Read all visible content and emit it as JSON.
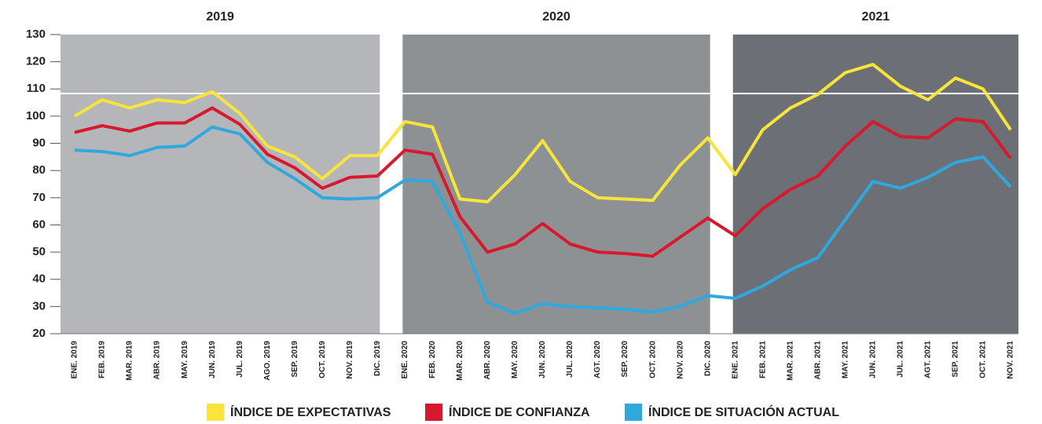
{
  "chart_data": {
    "type": "line",
    "categories": [
      "ENE. 2019",
      "FEB. 2019",
      "MAR. 2019",
      "ABR. 2019",
      "MAY. 2019",
      "JUN. 2019",
      "JUL. 2019",
      "AGO. 2019",
      "SEP. 2019",
      "OCT. 2019",
      "NOV. 2019",
      "DIC. 2019",
      "ENE. 2020",
      "FEB. 2020",
      "MAR. 2020",
      "ABR. 2020",
      "MAY. 2020",
      "JUN. 2020",
      "JUL. 2020",
      "AGT. 2020",
      "SEP. 2020",
      "OCT. 2020",
      "NOV. 2020",
      "DIC. 2020",
      "ENE. 2021",
      "FEB. 2021",
      "MAR. 2021",
      "ABR. 2021",
      "MAY. 2021",
      "JUN. 2021",
      "JUL. 2021",
      "AGT. 2021",
      "SEP. 2021",
      "OCT. 2021",
      "NOV. 2021"
    ],
    "periods": [
      {
        "label": "2019",
        "color": "#b4b6b9"
      },
      {
        "label": "2020",
        "color": "#8e9194"
      },
      {
        "label": "2021",
        "color": "#6c6f75"
      }
    ],
    "series": [
      {
        "name": "ÍNDICE DE EXPECTATIVAS",
        "color": "#f9e43a",
        "values": [
          100,
          106,
          103,
          106,
          105,
          109,
          101,
          89,
          85,
          77,
          85.5,
          85.5,
          98,
          96,
          69.5,
          68.5,
          78.5,
          91,
          76,
          70,
          69.5,
          69,
          82,
          92,
          78.5,
          95,
          103,
          108,
          116,
          119,
          111,
          106,
          114,
          110,
          95
        ]
      },
      {
        "name": "ÍNDICE DE CONFIANZA",
        "color": "#d7192d",
        "values": [
          94,
          96.5,
          94.5,
          97.5,
          97.5,
          103,
          97,
          86,
          81,
          73.5,
          77.5,
          78,
          87.5,
          86,
          63,
          50,
          53,
          60.5,
          53,
          50,
          49.5,
          48.5,
          55.5,
          62.5,
          56,
          66,
          73,
          78,
          89,
          98,
          92.5,
          92,
          99,
          98,
          84.5
        ]
      },
      {
        "name": "ÍNDICE DE SITUACIÓN ACTUAL",
        "color": "#2ea8dd",
        "values": [
          87.5,
          87,
          85.5,
          88.5,
          89,
          96,
          93.5,
          83,
          77,
          70,
          69.5,
          70,
          76.5,
          76,
          57,
          31.5,
          27.5,
          31,
          30,
          29.5,
          29,
          28,
          30,
          34,
          33,
          37.5,
          43.5,
          48,
          62,
          76,
          73.5,
          77.5,
          83,
          85,
          74
        ]
      }
    ],
    "reference_line": 108.3,
    "ylim": [
      20,
      130
    ],
    "yticks": [
      20,
      30,
      40,
      50,
      60,
      70,
      80,
      90,
      100,
      110,
      120,
      130
    ]
  }
}
